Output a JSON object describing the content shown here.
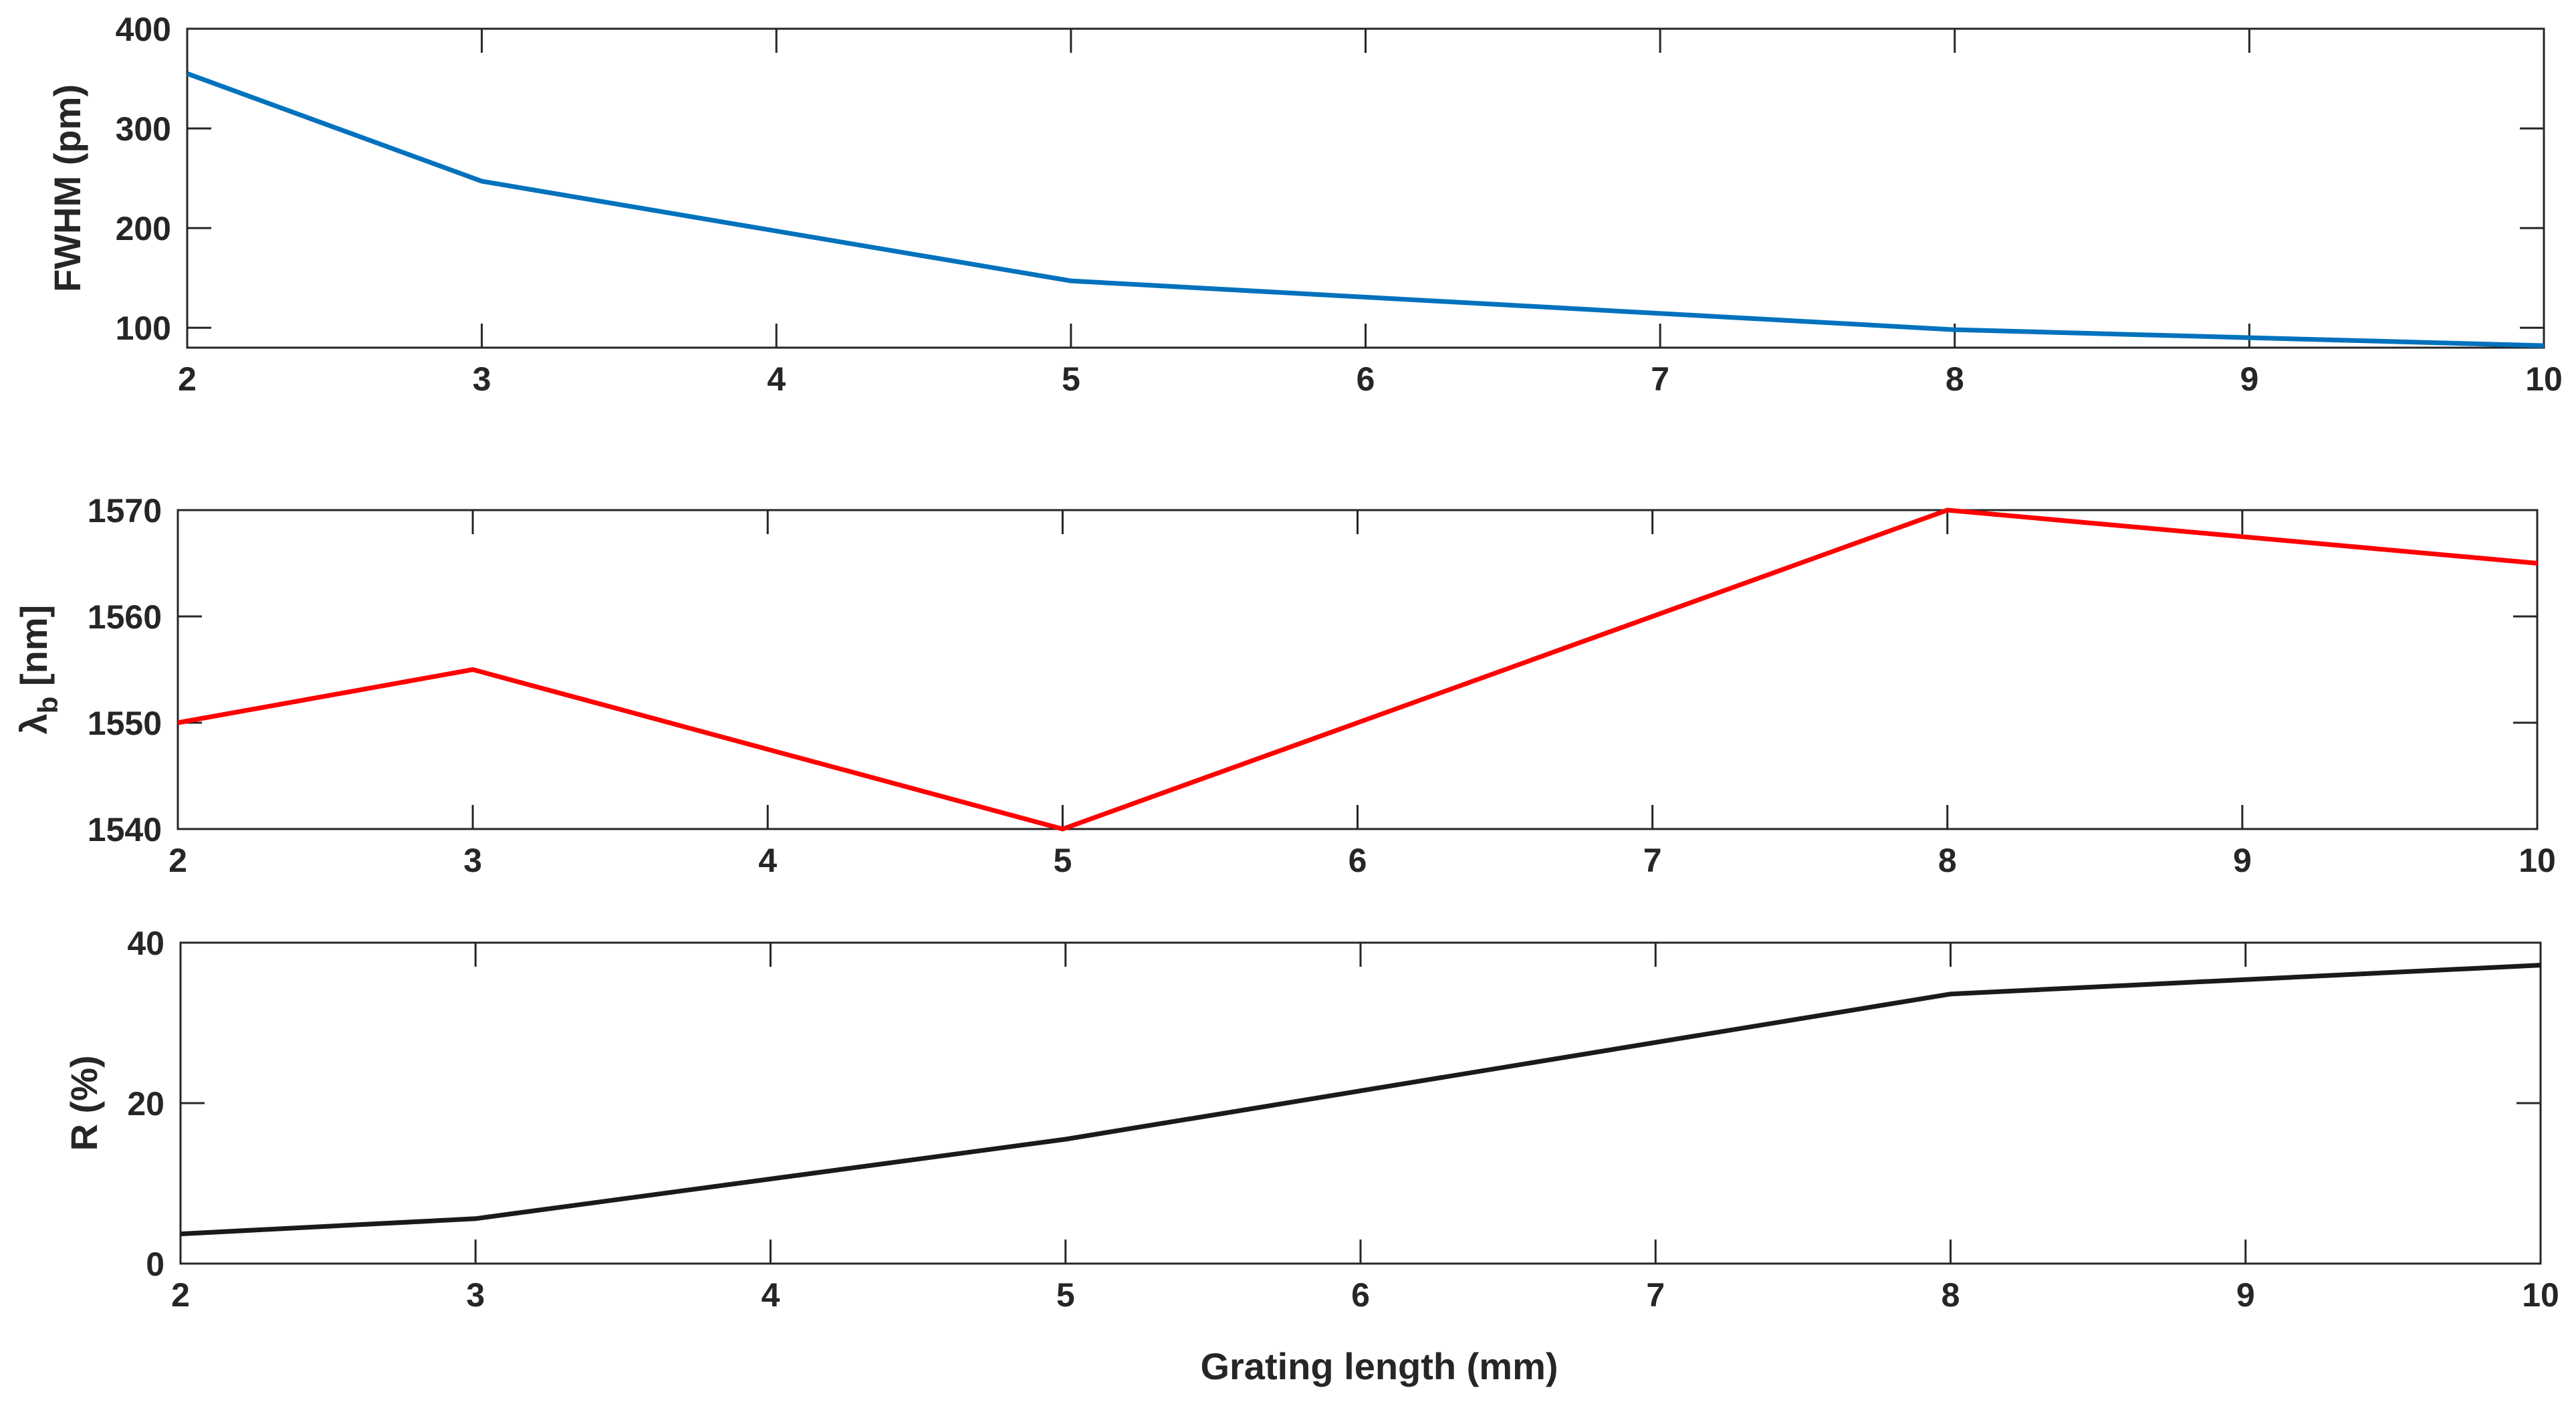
{
  "chart_data": [
    {
      "type": "line",
      "name": "fwhm",
      "title": "",
      "x": [
        2,
        3,
        5,
        8,
        10
      ],
      "values": [
        355,
        247,
        147,
        98,
        82
      ],
      "xlim": [
        2,
        10
      ],
      "ylim": [
        80,
        400
      ],
      "xticks": [
        2,
        3,
        4,
        5,
        6,
        7,
        8,
        9,
        10
      ],
      "yticks": [
        100,
        200,
        300,
        400
      ],
      "xlabel": "",
      "ylabel": "FWHM (pm)",
      "color": "#0072BD",
      "grid": false
    },
    {
      "type": "line",
      "name": "bragg",
      "title": "",
      "x": [
        2,
        3,
        5,
        8,
        10
      ],
      "values": [
        1550,
        1555,
        1540,
        1570,
        1565
      ],
      "xlim": [
        2,
        10
      ],
      "ylim": [
        1540,
        1570
      ],
      "xticks": [
        2,
        3,
        4,
        5,
        6,
        7,
        8,
        9,
        10
      ],
      "yticks": [
        1540,
        1550,
        1560,
        1570
      ],
      "xlabel": "",
      "ylabel_main": "λ",
      "ylabel_sub": "b",
      "ylabel_rest": " [nm]",
      "color": "#FF0000",
      "grid": false
    },
    {
      "type": "line",
      "name": "reflectivity",
      "title": "",
      "x": [
        2,
        3,
        5,
        8,
        10
      ],
      "values": [
        3.7,
        5.6,
        15.5,
        33.6,
        37.2
      ],
      "xlim": [
        2,
        10
      ],
      "ylim": [
        0,
        40
      ],
      "xticks": [
        2,
        3,
        4,
        5,
        6,
        7,
        8,
        9,
        10
      ],
      "yticks": [
        0,
        20,
        40
      ],
      "xlabel": "Grating length (mm)",
      "ylabel": "R (%)",
      "color": "#1A1A1A",
      "grid": false
    }
  ]
}
